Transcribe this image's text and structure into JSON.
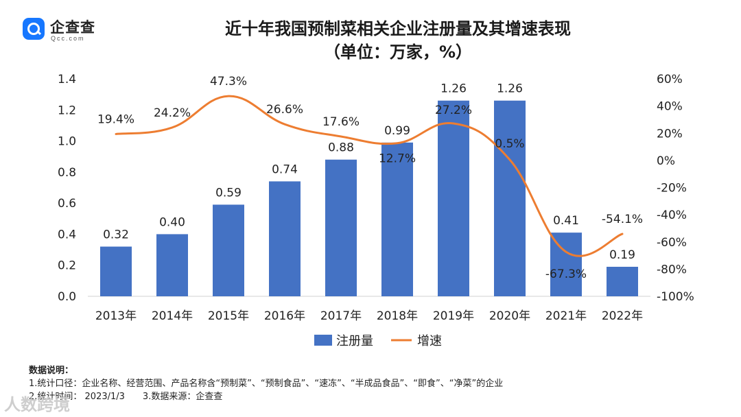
{
  "brand": {
    "name": "企查查",
    "sub": "Qcc.com"
  },
  "watermark": "人数跨境",
  "title_line1": "近十年我国预制菜相关企业注册量及其增速表现",
  "title_line2": "（单位：万家，%）",
  "notes": {
    "heading": "数据说明：",
    "line1": "1.统计口径：企业名称、经营范围、产品名称含“预制菜”、“预制食品”、“速冻”、“半成品食品”、“即食”、“净菜”的企业",
    "line2a": "2.统计时间：  2023/1/3",
    "line2b": "3.数据来源：企查查"
  },
  "chart_data": {
    "type": "bar",
    "title": "近十年我国预制菜相关企业注册量及其增速表现",
    "subtitle": "（单位：万家，%）",
    "categories": [
      "2013年",
      "2014年",
      "2015年",
      "2016年",
      "2017年",
      "2018年",
      "2019年",
      "2020年",
      "2021年",
      "2022年"
    ],
    "series": [
      {
        "name": "注册量",
        "type": "bar",
        "axis": "left",
        "color": "#4472c4",
        "values": [
          0.32,
          0.4,
          0.59,
          0.74,
          0.88,
          0.99,
          1.26,
          1.26,
          0.41,
          0.19
        ],
        "labels": [
          "0.32",
          "0.40",
          "0.59",
          "0.74",
          "0.88",
          "0.99",
          "1.26",
          "1.26",
          "0.41",
          "0.19"
        ]
      },
      {
        "name": "增速",
        "type": "line",
        "axis": "right",
        "color": "#ed7d31",
        "values": [
          19.4,
          24.2,
          47.3,
          26.6,
          17.6,
          12.7,
          27.2,
          0.5,
          -67.3,
          -54.1
        ],
        "labels": [
          "19.4%",
          "24.2%",
          "47.3%",
          "26.6%",
          "17.6%",
          "12.7%",
          "27.2%",
          "0.5%",
          "-67.3%",
          "-54.1%"
        ]
      }
    ],
    "y_left": {
      "range": [
        0,
        1.4
      ],
      "ticks": [
        0,
        0.2,
        0.4,
        0.6,
        0.8,
        1.0,
        1.2,
        1.4
      ],
      "tick_labels": [
        "0.0",
        "0.2",
        "0.4",
        "0.6",
        "0.8",
        "1.0",
        "1.2",
        "1.4"
      ]
    },
    "y_right": {
      "range": [
        -100,
        60
      ],
      "ticks": [
        -100,
        -80,
        -60,
        -40,
        -20,
        0,
        20,
        40,
        60
      ],
      "tick_labels": [
        "-100%",
        "-80%",
        "-60%",
        "-40%",
        "-20%",
        "0%",
        "20%",
        "40%",
        "60%"
      ]
    },
    "legend": {
      "position": "bottom",
      "items": [
        "注册量",
        "增速"
      ]
    },
    "grid": false
  }
}
